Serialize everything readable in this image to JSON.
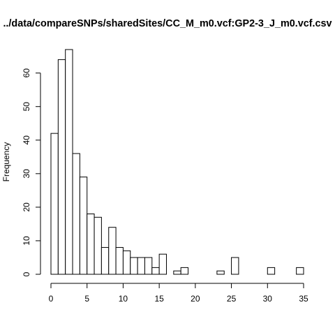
{
  "chart_data": {
    "type": "bar",
    "title": "../data/compareSNPs/sharedSites/CC_M_m0.vcf:GP2-3_J_m0.vcf.csv",
    "xlabel": "",
    "ylabel": "Frequency",
    "bin_width": 1,
    "bin_starts": [
      0,
      1,
      2,
      3,
      4,
      5,
      6,
      7,
      8,
      9,
      10,
      11,
      12,
      13,
      14,
      15,
      16,
      17,
      18,
      19,
      20,
      21,
      22,
      23,
      24,
      25,
      26,
      27,
      28,
      29,
      30,
      31,
      32,
      33,
      34
    ],
    "values": [
      42,
      64,
      67,
      36,
      29,
      18,
      17,
      8,
      14,
      8,
      7,
      5,
      5,
      5,
      2,
      6,
      0,
      1,
      2,
      0,
      0,
      0,
      0,
      1,
      0,
      5,
      0,
      0,
      0,
      0,
      2,
      0,
      0,
      0,
      2
    ],
    "xlim": [
      0,
      35
    ],
    "ylim": [
      0,
      67
    ],
    "xticks": [
      0,
      5,
      10,
      15,
      20,
      25,
      30,
      35
    ],
    "yticks": [
      0,
      10,
      20,
      30,
      40,
      50,
      60
    ],
    "grid": false
  }
}
